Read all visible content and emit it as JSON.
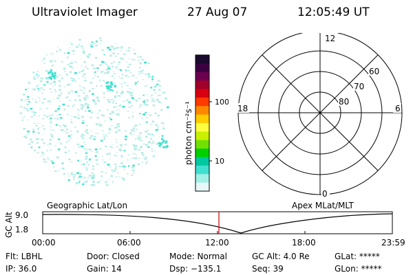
{
  "header": {
    "instrument": "Ultraviolet Imager",
    "date": "27 Aug 07",
    "time": "12:05:49 UT"
  },
  "colorbar": {
    "unit_label": "photon cm⁻²s⁻¹",
    "ticks": [
      "100",
      "10"
    ],
    "colors": [
      "#1a0a2e",
      "#3b0040",
      "#6b0050",
      "#a0002a",
      "#d80010",
      "#ff3a00",
      "#ff8800",
      "#ffcc00",
      "#ffff40",
      "#c8f000",
      "#70e000",
      "#00d000",
      "#00c8a0",
      "#40e0d0",
      "#a0f0e8",
      "#e8f8f8"
    ]
  },
  "polar_plot": {
    "mlt_labels": {
      "top": "12",
      "left": "18",
      "right": "6",
      "bottom": "0"
    },
    "lat_labels": [
      "60",
      "70",
      "80"
    ]
  },
  "timeline": {
    "left_label": "Geographic Lat/Lon",
    "right_label": "Apex MLat/MLT",
    "axis_label": "GC Alt",
    "y_ticks": [
      "9.0",
      "1.8"
    ],
    "x_ticks": [
      "00:00",
      "06:00",
      "12:00",
      "18:00",
      "23:59"
    ],
    "current_time_fraction": 0.504
  },
  "status": {
    "row1": {
      "flt": "Flt: LBHL",
      "door": "Door: Closed",
      "mode": "Mode: Normal",
      "gc_alt": "GC Alt: 4.0 Re",
      "glat": "GLat: *****"
    },
    "row2": {
      "ip": "IP: 36.0",
      "gain": "Gain: 14",
      "dsp": "Dsp: −135.1",
      "seq": "Seq: 39",
      "glon": "GLon: *****"
    }
  },
  "colors": {
    "marker": "#cc0000",
    "speckle_main": "#40e0d0",
    "speckle_light": "#b8ece6"
  }
}
